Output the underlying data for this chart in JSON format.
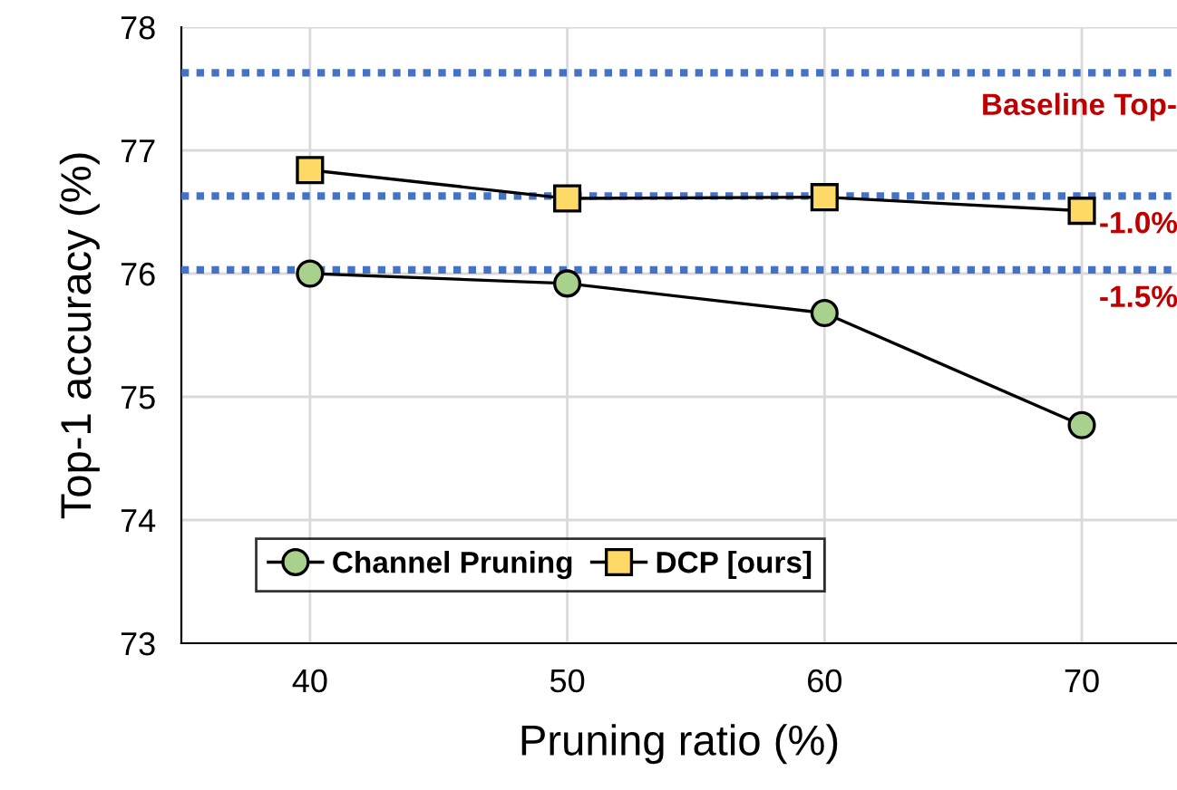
{
  "chart_data": {
    "type": "line",
    "xlabel": "Pruning ratio (%)",
    "ylabel": "Top-1 accuracy (%)",
    "x": [
      40,
      50,
      60,
      70
    ],
    "series": [
      {
        "name": "Channel Pruning",
        "color": "#a9d18e",
        "marker": "circle",
        "values": [
          76.0,
          75.92,
          75.68,
          74.77
        ]
      },
      {
        "name": "DCP [ours]",
        "color": "#ffd966",
        "marker": "square",
        "values": [
          76.84,
          76.61,
          76.62,
          76.51
        ]
      }
    ],
    "xlim": [
      35,
      73.7
    ],
    "xticks": [
      40,
      50,
      60,
      70
    ],
    "ylim": [
      73,
      78
    ],
    "yticks": [
      73,
      74,
      75,
      76,
      77,
      78
    ],
    "ref_lines": [
      {
        "axis": "y",
        "value": 77.63,
        "label": "Baseline Top-",
        "color": "#4472c4",
        "line_style": "dotted"
      },
      {
        "axis": "y",
        "value": 76.63,
        "color": "#4472c4",
        "line_style": "dotted"
      },
      {
        "axis": "y",
        "value": 76.03,
        "color": "#4472c4",
        "line_style": "dotted"
      }
    ],
    "annotations": [
      {
        "text": "-1.0%",
        "x": 72.2,
        "y": 76.63
      },
      {
        "text": "-1.5%",
        "x": 72.2,
        "y": 76.03
      }
    ],
    "grid": true,
    "legend": "bottom left",
    "line_style": "solid"
  }
}
